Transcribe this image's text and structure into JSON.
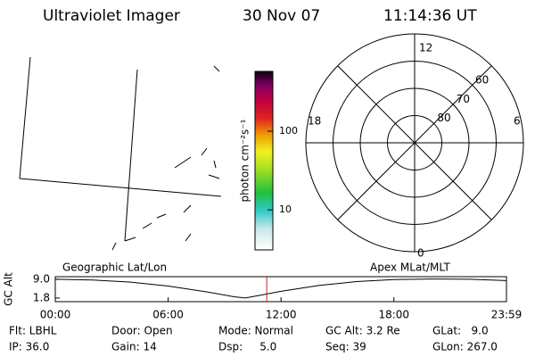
{
  "header": {
    "instrument": "Ultraviolet Imager",
    "date": "30 Nov 07",
    "time": "11:14:36 UT"
  },
  "colorbar": {
    "label": "photon cm⁻²s⁻¹",
    "log": true,
    "lim": [
      3.1,
      575
    ],
    "ticks": [
      10,
      100
    ]
  },
  "polar": {
    "lat_range": [
      50,
      90
    ],
    "lat_ticks": [
      80,
      70,
      60
    ],
    "mlt_labels": {
      "top": 12,
      "left": 18,
      "right": 6,
      "bottom": 0
    }
  },
  "chart_data": {
    "type": "line",
    "ylabel": "GC Alt",
    "left_label": "Geographic Lat/Lon",
    "right_label": "Apex MLat/MLT",
    "xlim": [
      0,
      23.983
    ],
    "xticks": [
      {
        "value": 0,
        "label": "00:00"
      },
      {
        "value": 6,
        "label": "06:00"
      },
      {
        "value": 12,
        "label": "12:00"
      },
      {
        "value": 18,
        "label": "18:00"
      },
      {
        "value": 23.983,
        "label": "23:59"
      }
    ],
    "ylim": [
      0.4,
      10.0
    ],
    "yticks": [
      {
        "value": 9,
        "label": "9.0"
      },
      1.8
    ],
    "marker": 11.24,
    "marker_color": "#cc2222",
    "color": "#000000",
    "series": [
      {
        "x": [
          0,
          2,
          4,
          6,
          8,
          9.5,
          10.1,
          11,
          12,
          14,
          16,
          18,
          20,
          22,
          23.983
        ],
        "values": [
          9.0,
          8.7,
          7.9,
          6.4,
          4.2,
          2.3,
          1.8,
          3.0,
          4.4,
          6.6,
          8.1,
          8.9,
          9.1,
          9.0,
          8.5
        ]
      }
    ]
  },
  "footer": {
    "rows": [
      [
        "Flt: LBHL",
        "Door: Open",
        "Mode: Normal",
        "GC Alt: 3.2 Re",
        "GLat:   9.0"
      ],
      [
        "IP: 36.0",
        "Gain: 14",
        "Dsp:     5.0",
        "Seq: 39",
        "GLon: 267.0"
      ]
    ]
  }
}
